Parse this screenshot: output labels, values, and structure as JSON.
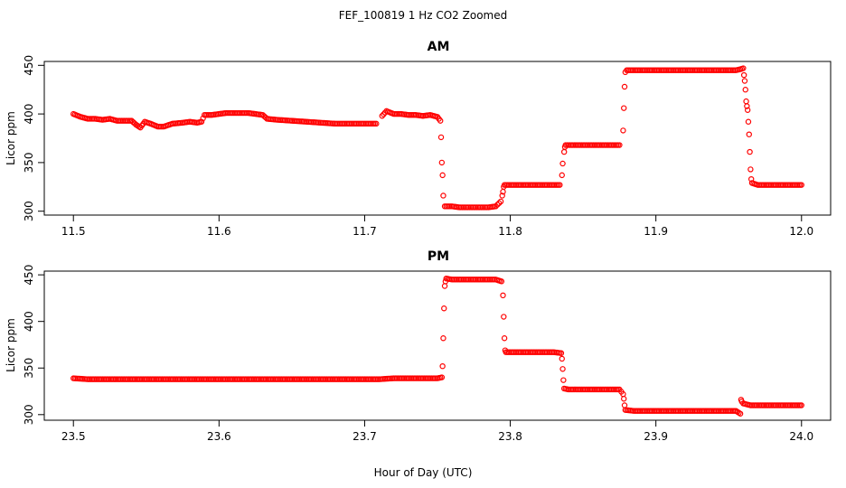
{
  "figure": {
    "title": "FEF_100819  1 Hz CO2 Zoomed",
    "xlabel": "Hour of Day (UTC)",
    "point_color": "#ff0000"
  },
  "chart_data": [
    {
      "type": "scatter",
      "title": "AM",
      "ylabel": "Licor ppm",
      "xlim": [
        11.48,
        12.02
      ],
      "ylim": [
        296,
        454
      ],
      "xticks": [
        11.5,
        11.6,
        11.7,
        11.8,
        11.9,
        12.0
      ],
      "xtick_labels": [
        "11.5",
        "11.6",
        "11.7",
        "11.8",
        "11.9",
        "12.0"
      ],
      "yticks": [
        300,
        350,
        400,
        450
      ],
      "ytick_labels": [
        "300",
        "350",
        "400",
        "450"
      ],
      "series": [
        {
          "marker": "open-circle",
          "points": [
            [
              11.5,
              400
            ],
            [
              11.505,
              397
            ],
            [
              11.51,
              395
            ],
            [
              11.515,
              395
            ],
            [
              11.52,
              394
            ],
            [
              11.525,
              395
            ],
            [
              11.53,
              393
            ],
            [
              11.535,
              393
            ],
            [
              11.54,
              393
            ],
            [
              11.543,
              389
            ],
            [
              11.546,
              386
            ],
            [
              11.549,
              392
            ],
            [
              11.553,
              390
            ],
            [
              11.558,
              387
            ],
            [
              11.562,
              387
            ],
            [
              11.568,
              390
            ],
            [
              11.575,
              391
            ],
            [
              11.58,
              392
            ],
            [
              11.585,
              391
            ],
            [
              11.588,
              392
            ],
            [
              11.59,
              399
            ],
            [
              11.595,
              399
            ],
            [
              11.6,
              400
            ],
            [
              11.605,
              401
            ],
            [
              11.61,
              401
            ],
            [
              11.615,
              401
            ],
            [
              11.62,
              401
            ],
            [
              11.625,
              400
            ],
            [
              11.63,
              399
            ],
            [
              11.633,
              395
            ],
            [
              11.64,
              394
            ],
            [
              11.65,
              393
            ],
            [
              11.66,
              392
            ],
            [
              11.67,
              391
            ],
            [
              11.68,
              390
            ],
            [
              11.69,
              390
            ],
            [
              11.7,
              390
            ],
            [
              11.708,
              390
            ],
            [
              11.712,
              398
            ],
            [
              11.715,
              403
            ],
            [
              11.72,
              400
            ],
            [
              11.725,
              400
            ],
            [
              11.73,
              399
            ],
            [
              11.735,
              399
            ],
            [
              11.74,
              398
            ],
            [
              11.745,
              399
            ],
            [
              11.75,
              397
            ],
            [
              11.752,
              393
            ],
            [
              11.7525,
              376
            ],
            [
              11.753,
              350
            ],
            [
              11.7535,
              337
            ],
            [
              11.754,
              316
            ],
            [
              11.755,
              305
            ],
            [
              11.76,
              305
            ],
            [
              11.765,
              304
            ],
            [
              11.77,
              304
            ],
            [
              11.775,
              304
            ],
            [
              11.78,
              304
            ],
            [
              11.785,
              304
            ],
            [
              11.79,
              305
            ],
            [
              11.7935,
              310
            ],
            [
              11.7945,
              316
            ],
            [
              11.795,
              320
            ],
            [
              11.7955,
              325
            ],
            [
              11.796,
              327
            ],
            [
              11.8,
              327
            ],
            [
              11.805,
              327
            ],
            [
              11.81,
              327
            ],
            [
              11.815,
              327
            ],
            [
              11.82,
              327
            ],
            [
              11.825,
              327
            ],
            [
              11.83,
              327
            ],
            [
              11.834,
              327
            ],
            [
              11.8355,
              337
            ],
            [
              11.836,
              349
            ],
            [
              11.837,
              361
            ],
            [
              11.8375,
              366
            ],
            [
              11.838,
              368
            ],
            [
              11.845,
              368
            ],
            [
              11.85,
              368
            ],
            [
              11.855,
              368
            ],
            [
              11.86,
              368
            ],
            [
              11.865,
              368
            ],
            [
              11.87,
              368
            ],
            [
              11.875,
              368
            ],
            [
              11.8775,
              383
            ],
            [
              11.878,
              406
            ],
            [
              11.8785,
              428
            ],
            [
              11.879,
              443
            ],
            [
              11.88,
              445
            ],
            [
              11.89,
              445
            ],
            [
              11.9,
              445
            ],
            [
              11.91,
              445
            ],
            [
              11.92,
              445
            ],
            [
              11.93,
              445
            ],
            [
              11.94,
              445
            ],
            [
              11.95,
              445
            ],
            [
              11.955,
              445
            ],
            [
              11.958,
              446
            ],
            [
              11.96,
              447
            ],
            [
              11.9605,
              440
            ],
            [
              11.961,
              434
            ],
            [
              11.9615,
              425
            ],
            [
              11.962,
              413
            ],
            [
              11.9625,
              408
            ],
            [
              11.963,
              404
            ],
            [
              11.9635,
              392
            ],
            [
              11.964,
              379
            ],
            [
              11.9645,
              361
            ],
            [
              11.965,
              343
            ],
            [
              11.9655,
              333
            ],
            [
              11.966,
              329
            ],
            [
              11.97,
              327
            ],
            [
              11.975,
              327
            ],
            [
              11.98,
              327
            ],
            [
              11.985,
              327
            ],
            [
              11.99,
              327
            ],
            [
              11.995,
              327
            ],
            [
              12.0,
              327
            ]
          ]
        }
      ]
    },
    {
      "type": "scatter",
      "title": "PM",
      "ylabel": "Licor ppm",
      "xlim": [
        23.48,
        24.02
      ],
      "ylim": [
        294,
        454
      ],
      "xticks": [
        23.5,
        23.6,
        23.7,
        23.8,
        23.9,
        24.0
      ],
      "xtick_labels": [
        "23.5",
        "23.6",
        "23.7",
        "23.8",
        "23.9",
        "24.0"
      ],
      "yticks": [
        300,
        350,
        400,
        450
      ],
      "ytick_labels": [
        "300",
        "350",
        "400",
        "450"
      ],
      "series": [
        {
          "marker": "open-circle",
          "points": [
            [
              23.5,
              339
            ],
            [
              23.51,
              338
            ],
            [
              23.52,
              338
            ],
            [
              23.53,
              338
            ],
            [
              23.54,
              338
            ],
            [
              23.55,
              338
            ],
            [
              23.56,
              338
            ],
            [
              23.57,
              338
            ],
            [
              23.58,
              338
            ],
            [
              23.59,
              338
            ],
            [
              23.6,
              338
            ],
            [
              23.61,
              338
            ],
            [
              23.62,
              338
            ],
            [
              23.63,
              338
            ],
            [
              23.64,
              338
            ],
            [
              23.65,
              338
            ],
            [
              23.66,
              338
            ],
            [
              23.67,
              338
            ],
            [
              23.68,
              338
            ],
            [
              23.69,
              338
            ],
            [
              23.7,
              338
            ],
            [
              23.71,
              338
            ],
            [
              23.72,
              339
            ],
            [
              23.73,
              339
            ],
            [
              23.74,
              339
            ],
            [
              23.75,
              339
            ],
            [
              23.753,
              340
            ],
            [
              23.7535,
              352
            ],
            [
              23.754,
              382
            ],
            [
              23.7545,
              414
            ],
            [
              23.755,
              438
            ],
            [
              23.7555,
              443
            ],
            [
              23.756,
              446
            ],
            [
              23.76,
              445
            ],
            [
              23.765,
              445
            ],
            [
              23.77,
              445
            ],
            [
              23.775,
              445
            ],
            [
              23.78,
              445
            ],
            [
              23.785,
              445
            ],
            [
              23.79,
              445
            ],
            [
              23.794,
              443
            ],
            [
              23.795,
              428
            ],
            [
              23.7955,
              405
            ],
            [
              23.796,
              382
            ],
            [
              23.7965,
              369
            ],
            [
              23.797,
              367
            ],
            [
              23.8,
              367
            ],
            [
              23.805,
              367
            ],
            [
              23.81,
              367
            ],
            [
              23.815,
              367
            ],
            [
              23.82,
              367
            ],
            [
              23.825,
              367
            ],
            [
              23.83,
              367
            ],
            [
              23.835,
              366
            ],
            [
              23.8355,
              360
            ],
            [
              23.836,
              349
            ],
            [
              23.8365,
              337
            ],
            [
              23.837,
              328
            ],
            [
              23.84,
              327
            ],
            [
              23.845,
              327
            ],
            [
              23.85,
              327
            ],
            [
              23.855,
              327
            ],
            [
              23.86,
              327
            ],
            [
              23.865,
              327
            ],
            [
              23.87,
              327
            ],
            [
              23.875,
              327
            ],
            [
              23.8775,
              322
            ],
            [
              23.878,
              317
            ],
            [
              23.8785,
              310
            ],
            [
              23.879,
              305
            ],
            [
              23.885,
              304
            ],
            [
              23.89,
              304
            ],
            [
              23.9,
              304
            ],
            [
              23.91,
              304
            ],
            [
              23.92,
              304
            ],
            [
              23.93,
              304
            ],
            [
              23.94,
              304
            ],
            [
              23.95,
              304
            ],
            [
              23.955,
              304
            ],
            [
              23.958,
              301
            ],
            [
              23.9585,
              316
            ],
            [
              23.959,
              314
            ],
            [
              23.96,
              312
            ],
            [
              23.965,
              310
            ],
            [
              23.97,
              310
            ],
            [
              23.975,
              310
            ],
            [
              23.98,
              310
            ],
            [
              23.985,
              310
            ],
            [
              23.99,
              310
            ],
            [
              23.995,
              310
            ],
            [
              24.0,
              310
            ]
          ]
        }
      ]
    }
  ]
}
